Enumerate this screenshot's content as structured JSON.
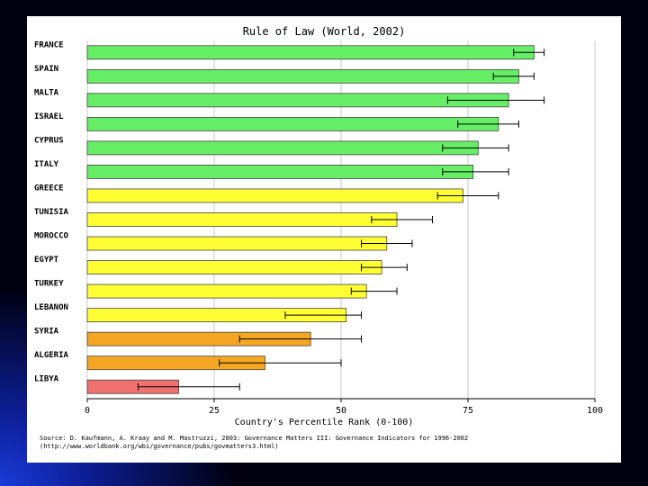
{
  "chart_data": {
    "type": "bar",
    "orientation": "horizontal",
    "title": "Rule of Law (World, 2002)",
    "xlabel": "Country's Percentile Rank (0-100)",
    "ylabel": "",
    "xlim": [
      0,
      100
    ],
    "xticks": [
      "0",
      "25",
      "50",
      "75",
      "100"
    ],
    "grid": true,
    "categories": [
      "FRANCE",
      "SPAIN",
      "MALTA",
      "ISRAEL",
      "CYPRUS",
      "ITALY",
      "GREECE",
      "TUNISIA",
      "MOROCCO",
      "EGYPT",
      "TURKEY",
      "LEBANON",
      "SYRIA",
      "ALGERIA",
      "LIBYA"
    ],
    "values": [
      88,
      85,
      83,
      81,
      77,
      76,
      74,
      61,
      59,
      58,
      55,
      51,
      44,
      35,
      18
    ],
    "error_low": [
      84,
      80,
      71,
      73,
      70,
      70,
      69,
      56,
      54,
      54,
      52,
      39,
      30,
      26,
      10
    ],
    "error_high": [
      90,
      88,
      90,
      85,
      83,
      83,
      81,
      68,
      64,
      63,
      61,
      54,
      54,
      50,
      30
    ],
    "colors": [
      "#66ee66",
      "#66ee66",
      "#66ee66",
      "#66ee66",
      "#66ee66",
      "#66ee66",
      "#ffff33",
      "#ffff33",
      "#ffff33",
      "#ffff33",
      "#ffff33",
      "#ffff33",
      "#f5a623",
      "#f5a623",
      "#f07070"
    ]
  },
  "source": {
    "line1": "Source: D. Kaufmann, A. Kraay and M. Mastruzzi, 2003: Governance Matters III: Governance Indicators for 1996-2002",
    "line2": "(http://www.worldbank.org/wbi/governance/pubs/govmatters3.html)"
  }
}
